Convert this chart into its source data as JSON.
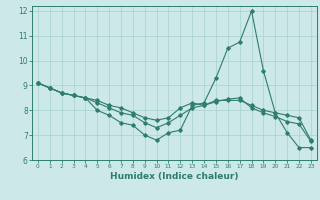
{
  "xlabel": "Humidex (Indice chaleur)",
  "ylabel": "",
  "bg_color": "#cce8e8",
  "grid_color": "#add4d4",
  "line_color": "#2e7d6e",
  "xlim": [
    -0.5,
    23.5
  ],
  "ylim": [
    6,
    12.2
  ],
  "yticks": [
    6,
    7,
    8,
    9,
    10,
    11,
    12
  ],
  "xticks": [
    0,
    1,
    2,
    3,
    4,
    5,
    6,
    7,
    8,
    9,
    10,
    11,
    12,
    13,
    14,
    15,
    16,
    17,
    18,
    19,
    20,
    21,
    22,
    23
  ],
  "series1": [
    9.1,
    8.9,
    8.7,
    8.6,
    8.5,
    8.4,
    8.2,
    8.1,
    7.9,
    7.7,
    7.6,
    7.7,
    8.1,
    8.3,
    8.2,
    8.4,
    8.4,
    8.4,
    8.2,
    8.0,
    7.9,
    7.8,
    7.7,
    6.8
  ],
  "series2": [
    9.1,
    8.9,
    8.7,
    8.6,
    8.5,
    8.0,
    7.8,
    7.5,
    7.4,
    7.0,
    6.8,
    7.1,
    7.2,
    8.2,
    8.3,
    9.3,
    10.5,
    10.75,
    12.0,
    9.6,
    7.9,
    7.1,
    6.5,
    6.5
  ],
  "series3": [
    9.1,
    8.9,
    8.7,
    8.6,
    8.5,
    8.3,
    8.1,
    7.9,
    7.8,
    7.5,
    7.3,
    7.5,
    7.8,
    8.1,
    8.2,
    8.35,
    8.45,
    8.5,
    8.1,
    7.9,
    7.75,
    7.55,
    7.45,
    6.75
  ]
}
